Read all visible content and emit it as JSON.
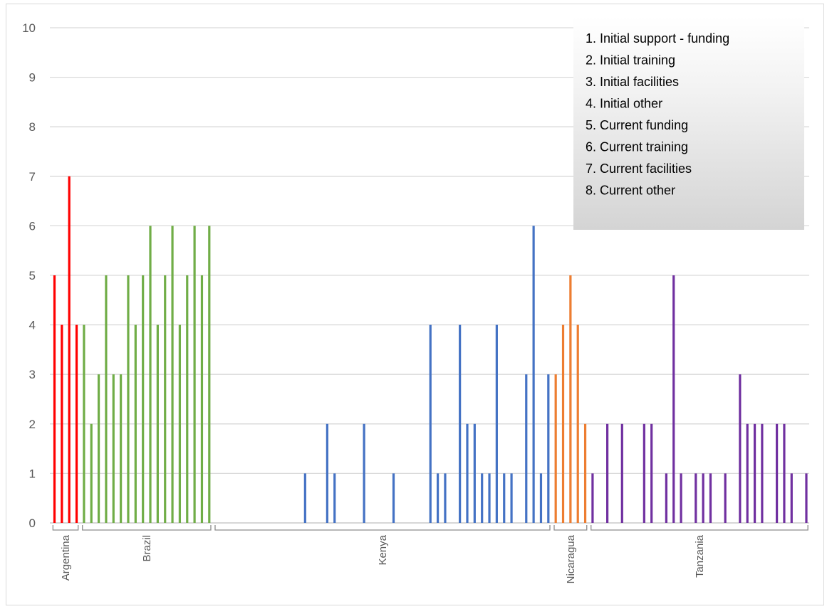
{
  "chart_data": {
    "type": "bar",
    "ylim": [
      0,
      10
    ],
    "yticks": [
      "0",
      "1",
      "2",
      "3",
      "4",
      "5",
      "6",
      "7",
      "8",
      "9",
      "10"
    ],
    "grid": true,
    "legend_position": "top-right",
    "legend_items": [
      "1. Initial support - funding",
      "2. Initial training",
      "3. Initial facilities",
      "4. Initial other",
      "5. Current funding",
      "6. Current training",
      "7. Current facilities",
      "8. Current other"
    ],
    "groups": [
      {
        "name": "Argentina",
        "color": "#ff0000",
        "values": [
          5,
          4,
          7,
          4
        ]
      },
      {
        "name": "Brazil",
        "color": "#70ad47",
        "values": [
          4,
          2,
          3,
          5,
          3,
          3,
          5,
          4,
          5,
          6,
          4,
          5,
          6,
          4,
          5,
          6,
          5,
          6
        ]
      },
      {
        "name": "Kenya",
        "color": "#4472c4",
        "values": [
          0,
          0,
          0,
          0,
          0,
          0,
          0,
          0,
          0,
          0,
          0,
          0,
          1,
          0,
          0,
          2,
          1,
          0,
          0,
          0,
          2,
          0,
          0,
          0,
          1,
          0,
          0,
          0,
          0,
          4,
          1,
          1,
          0,
          4,
          2,
          2,
          1,
          1,
          4,
          1,
          1,
          0,
          3,
          6,
          1,
          3
        ]
      },
      {
        "name": "Nicaragua",
        "color": "#ed7d31",
        "values": [
          3,
          4,
          5,
          4,
          2
        ]
      },
      {
        "name": "Tanzania",
        "color": "#7030a0",
        "values": [
          1,
          0,
          2,
          0,
          2,
          0,
          0,
          2,
          2,
          0,
          1,
          5,
          1,
          0,
          1,
          1,
          1,
          0,
          1,
          0,
          3,
          2,
          2,
          2,
          0,
          2,
          2,
          1,
          0,
          1
        ]
      }
    ]
  }
}
